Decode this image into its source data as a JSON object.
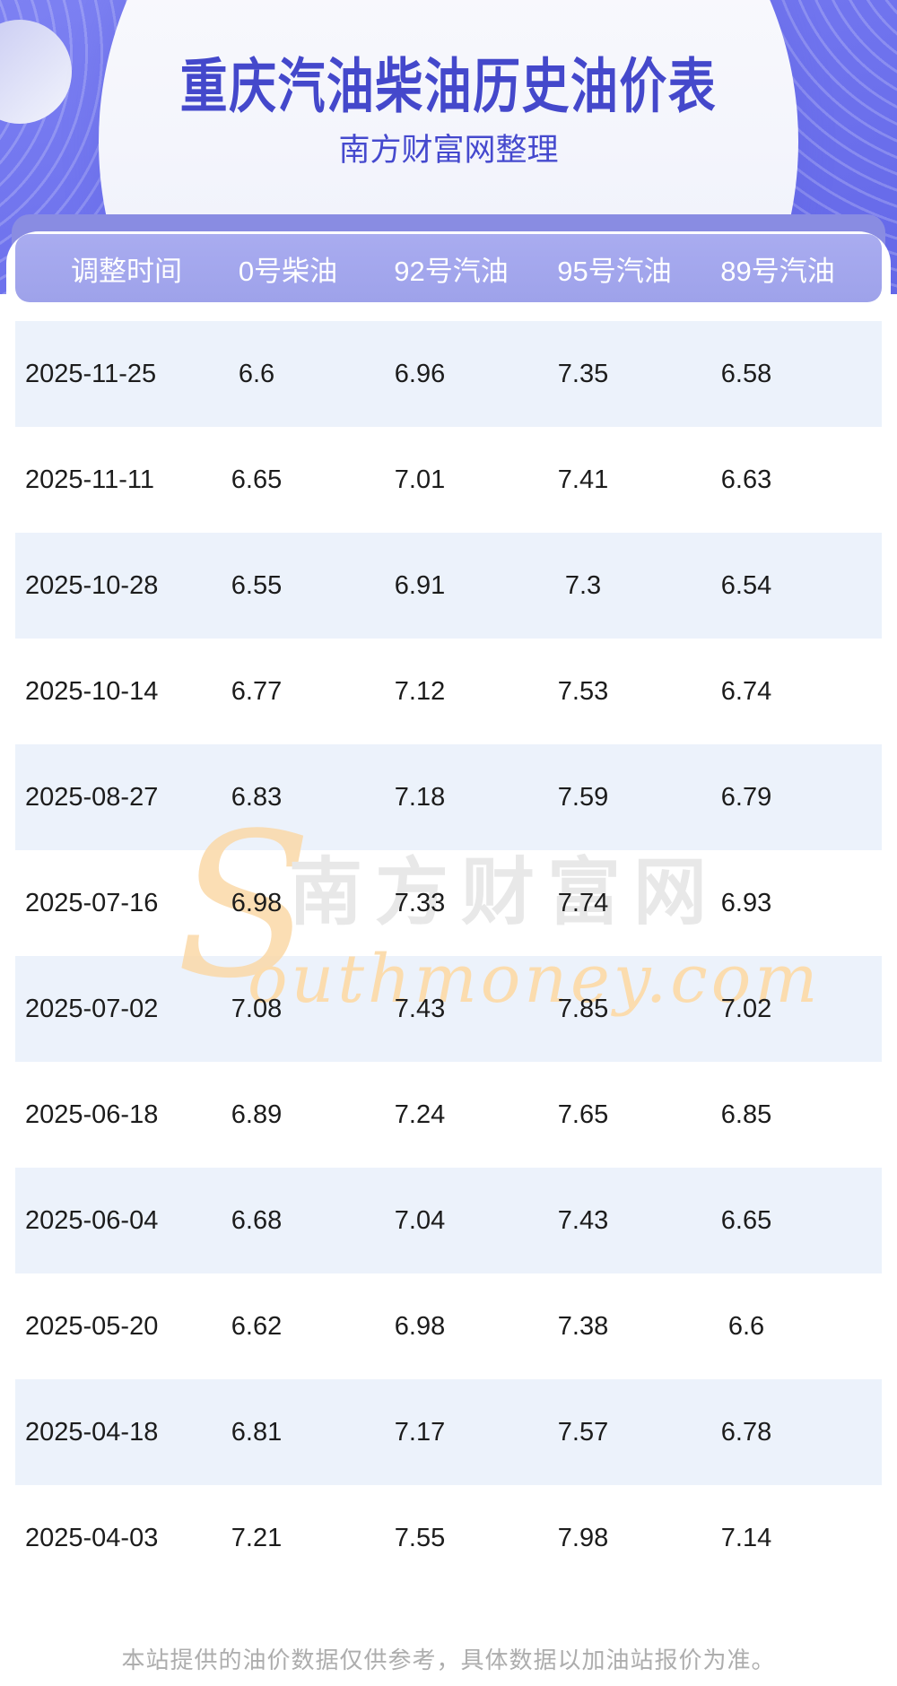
{
  "page": {
    "title": "重庆汽油柴油历史油价表",
    "subtitle": "南方财富网整理",
    "footer_note": "本站提供的油价数据仅供参考，具体数据以加油站报价为准。"
  },
  "watermark": {
    "initial": "S",
    "text": "outhmoney.com",
    "cn": "南方财富网"
  },
  "table": {
    "headers": [
      "调整时间",
      "0号柴油",
      "92号汽油",
      "95号汽油",
      "89号汽油"
    ],
    "rows": [
      [
        "2025-11-25",
        "6.6",
        "6.96",
        "7.35",
        "6.58"
      ],
      [
        "2025-11-11",
        "6.65",
        "7.01",
        "7.41",
        "6.63"
      ],
      [
        "2025-10-28",
        "6.55",
        "6.91",
        "7.3",
        "6.54"
      ],
      [
        "2025-10-14",
        "6.77",
        "7.12",
        "7.53",
        "6.74"
      ],
      [
        "2025-08-27",
        "6.83",
        "7.18",
        "7.59",
        "6.79"
      ],
      [
        "2025-07-16",
        "6.98",
        "7.33",
        "7.74",
        "6.93"
      ],
      [
        "2025-07-02",
        "7.08",
        "7.43",
        "7.85",
        "7.02"
      ],
      [
        "2025-06-18",
        "6.89",
        "7.24",
        "7.65",
        "6.85"
      ],
      [
        "2025-06-04",
        "6.68",
        "7.04",
        "7.43",
        "6.65"
      ],
      [
        "2025-05-20",
        "6.62",
        "6.98",
        "7.38",
        "6.6"
      ],
      [
        "2025-04-18",
        "6.81",
        "7.17",
        "7.57",
        "6.78"
      ],
      [
        "2025-04-03",
        "7.21",
        "7.55",
        "7.98",
        "7.14"
      ]
    ]
  },
  "colors": {
    "banner_purple": "#7074ee",
    "dark_bar": "#898ce2",
    "header_bar": "#a2a6ec",
    "header_text": "#ffffff",
    "row_alt": "#ecf2fb",
    "row_text": "#1c1c1c",
    "title_text": "#4448cb",
    "watermark_gray": "#e8e8e8",
    "watermark_orange": "#fbdcae",
    "footer_gray": "#adadad"
  },
  "chart_data": {
    "type": "table",
    "title": "重庆汽油柴油历史油价表",
    "source": "南方财富网整理",
    "note": "本站提供的油价数据仅供参考，具体数据以加油站报价为准。",
    "columns": [
      "调整时间",
      "0号柴油",
      "92号汽油",
      "95号汽油",
      "89号汽油"
    ],
    "rows": [
      [
        "2025-11-25",
        6.6,
        6.96,
        7.35,
        6.58
      ],
      [
        "2025-11-11",
        6.65,
        7.01,
        7.41,
        6.63
      ],
      [
        "2025-10-28",
        6.55,
        6.91,
        7.3,
        6.54
      ],
      [
        "2025-10-14",
        6.77,
        7.12,
        7.53,
        6.74
      ],
      [
        "2025-08-27",
        6.83,
        7.18,
        7.59,
        6.79
      ],
      [
        "2025-07-16",
        6.98,
        7.33,
        7.74,
        6.93
      ],
      [
        "2025-07-02",
        7.08,
        7.43,
        7.85,
        7.02
      ],
      [
        "2025-06-18",
        6.89,
        7.24,
        7.65,
        6.85
      ],
      [
        "2025-06-04",
        6.68,
        7.04,
        7.43,
        6.65
      ],
      [
        "2025-05-20",
        6.62,
        6.98,
        7.38,
        6.6
      ],
      [
        "2025-04-18",
        6.81,
        7.17,
        7.57,
        6.78
      ],
      [
        "2025-04-03",
        7.21,
        7.55,
        7.98,
        7.14
      ]
    ]
  }
}
